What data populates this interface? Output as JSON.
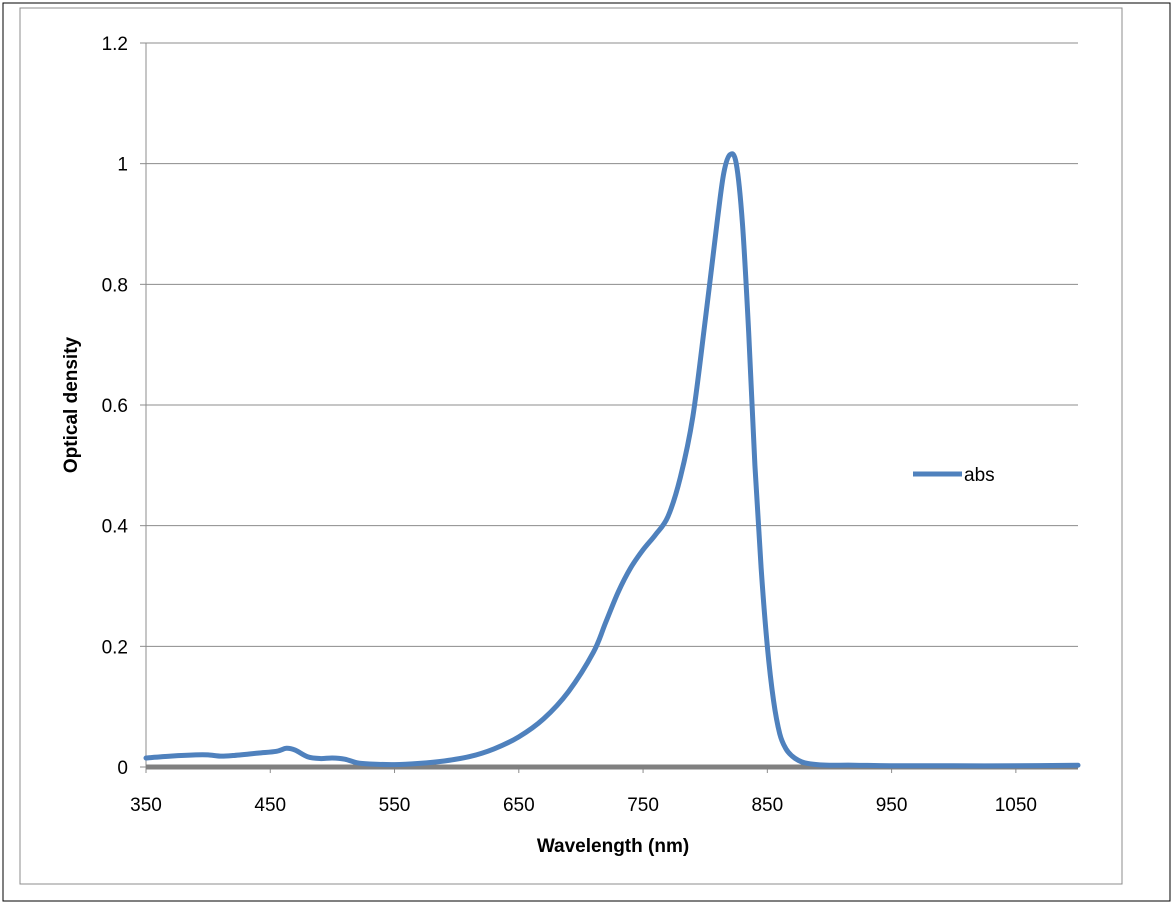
{
  "chart_data": {
    "type": "line",
    "title": "",
    "xlabel": "Wavelength (nm)",
    "ylabel": "Optical density",
    "xlim": [
      350,
      1100
    ],
    "ylim": [
      0,
      1.2
    ],
    "x_ticks": [
      "350",
      "450",
      "550",
      "650",
      "750",
      "850",
      "950",
      "1050"
    ],
    "y_ticks": [
      "0",
      "0.2",
      "0.4",
      "0.6",
      "0.8",
      "1",
      "1.2"
    ],
    "grid": "horizontal",
    "legend_position": "right",
    "series": [
      {
        "name": "abs",
        "color": "#4f81bd",
        "x": [
          350,
          370,
          390,
          400,
          410,
          420,
          440,
          455,
          463,
          470,
          480,
          490,
          500,
          510,
          520,
          530,
          550,
          570,
          590,
          610,
          630,
          650,
          670,
          690,
          710,
          720,
          730,
          740,
          750,
          760,
          770,
          780,
          790,
          800,
          810,
          815,
          820,
          825,
          830,
          835,
          840,
          845,
          850,
          855,
          860,
          865,
          870,
          875,
          880,
          890,
          900,
          920,
          950,
          1000,
          1050,
          1100
        ],
        "y": [
          0.015,
          0.018,
          0.02,
          0.02,
          0.018,
          0.019,
          0.023,
          0.026,
          0.031,
          0.028,
          0.017,
          0.014,
          0.015,
          0.013,
          0.007,
          0.005,
          0.004,
          0.006,
          0.01,
          0.017,
          0.03,
          0.05,
          0.08,
          0.125,
          0.19,
          0.24,
          0.29,
          0.33,
          0.36,
          0.385,
          0.415,
          0.48,
          0.58,
          0.74,
          0.91,
          0.985,
          1.015,
          1.0,
          0.9,
          0.72,
          0.5,
          0.33,
          0.2,
          0.11,
          0.055,
          0.03,
          0.018,
          0.011,
          0.007,
          0.004,
          0.003,
          0.003,
          0.002,
          0.002,
          0.002,
          0.003
        ]
      }
    ]
  }
}
